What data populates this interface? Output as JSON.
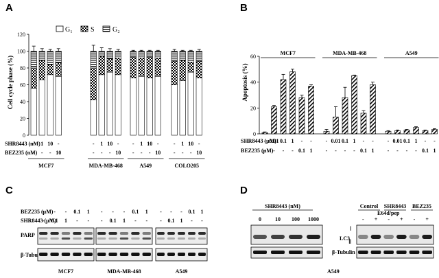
{
  "panels": {
    "a": "A",
    "b": "B",
    "c": "C",
    "d": "D"
  },
  "chart_data": [
    {
      "type": "bar",
      "stacked": true,
      "ylabel": "Cell cycle phase (%)",
      "ylim": [
        0,
        120
      ],
      "yticks": [
        "0",
        "20",
        "40",
        "60",
        "80",
        "100",
        "120"
      ],
      "groups": [
        "MCF7",
        "MDA-MB-468",
        "A549",
        "COLO205"
      ],
      "series": [
        {
          "name": "G₁",
          "values": [
            56,
            66,
            72,
            70,
            42,
            72,
            75,
            72,
            68,
            70,
            68,
            70,
            60,
            65,
            75,
            68
          ]
        },
        {
          "name": "S",
          "values": [
            24,
            23,
            12,
            16,
            38,
            22,
            16,
            20,
            25,
            22,
            25,
            22,
            28,
            24,
            12,
            20
          ]
        },
        {
          "name": "G₂",
          "values": [
            20,
            11,
            16,
            14,
            20,
            6,
            9,
            8,
            7,
            8,
            7,
            8,
            12,
            11,
            13,
            12
          ]
        }
      ],
      "errors": [
        6,
        3,
        2,
        3,
        7,
        4,
        3,
        2,
        1,
        1,
        1,
        1,
        2,
        1,
        1,
        2
      ],
      "conditions": {
        "row_labels": [
          "SHR8443 (nM)",
          "BEZ235 (nM)"
        ],
        "shr": [
          "-",
          "1",
          "10",
          "-",
          "-",
          "1",
          "10",
          "-",
          "-",
          "1",
          "10",
          "-",
          "-",
          "1",
          "10",
          "-"
        ],
        "bez": [
          "-",
          "-",
          "-",
          "10",
          "-",
          "-",
          "-",
          "10",
          "-",
          "-",
          "-",
          "10",
          "-",
          "-",
          "-",
          "10"
        ]
      }
    },
    {
      "type": "bar",
      "ylabel": "Apoptosis (%)",
      "ylim": [
        0,
        60
      ],
      "yticks": [
        "0",
        "20",
        "40",
        "60"
      ],
      "groups": [
        "MCF7",
        "MDA-MB-468",
        "A549"
      ],
      "values": [
        1,
        21,
        42,
        48,
        28,
        37,
        2,
        13,
        28,
        45,
        16,
        38,
        2,
        2.5,
        3,
        5,
        2.5,
        3.5
      ],
      "errors": [
        0.5,
        1,
        4,
        2,
        2,
        1,
        1.5,
        8,
        8,
        0.5,
        2,
        2,
        0.5,
        0.5,
        0.5,
        0.5,
        0.5,
        0.5
      ],
      "conditions": {
        "row_labels": [
          "SHR8443 (μM)",
          "BEZ235 (μM)"
        ],
        "shr": [
          "-",
          "0.01",
          "0.1",
          "1",
          "-",
          "-",
          "-",
          "0.01",
          "0.1",
          "1",
          "-",
          "-",
          "-",
          "0.01",
          "0.1",
          "1",
          "-",
          "-"
        ],
        "bez": [
          "-",
          "-",
          "-",
          "-",
          "0.1",
          "1",
          "-",
          "-",
          "-",
          "-",
          "0.1",
          "1",
          "-",
          "-",
          "-",
          "-",
          "0.1",
          "1"
        ]
      }
    }
  ],
  "blot_c": {
    "treatment_labels": [
      "BEZ235 (μM)",
      "SHR8443 (μM)"
    ],
    "band_labels": [
      "PARP",
      "β-Tubulin"
    ],
    "cell_lines": [
      "MCF7",
      "MDA-MB-468",
      "A549"
    ],
    "bez": [
      [
        "-",
        "-",
        "-",
        "0.1",
        "1"
      ],
      [
        "-",
        "-",
        "-",
        "0.1",
        "1"
      ],
      [
        "-",
        "-",
        "-",
        "0.1",
        "1"
      ]
    ],
    "shr": [
      [
        "-",
        "0.1",
        "1",
        "-",
        "-"
      ],
      [
        "-",
        "0.1",
        "1",
        "-",
        "-"
      ],
      [
        "-",
        "0.1",
        "1",
        "-",
        "-"
      ]
    ]
  },
  "blot_d": {
    "shr_header": "SHR8443 (nM)",
    "doses": [
      "0",
      "10",
      "100",
      "1000"
    ],
    "band_labels": [
      "LC3",
      "β-Tubulin"
    ],
    "lc3_forms": [
      "Ⅰ",
      "Ⅱ"
    ],
    "groups": [
      "Control",
      "SHR8443",
      "BEZ235"
    ],
    "e64d_label": "E64d/pep",
    "e64d": [
      "-",
      "+",
      "-",
      "+",
      "-",
      "+"
    ],
    "cell_line": "A549"
  }
}
